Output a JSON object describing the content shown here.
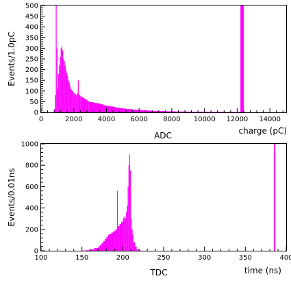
{
  "chart_data": [
    {
      "type": "bar",
      "title": "ADC",
      "xlabel": "charge (pC)",
      "ylabel": "Events/1.0pC",
      "xlim": [
        0,
        15000
      ],
      "ylim": [
        0,
        500
      ],
      "xticks": [
        0,
        2000,
        4000,
        6000,
        8000,
        10000,
        12000,
        14000
      ],
      "yticks": [
        0,
        50,
        100,
        150,
        200,
        250,
        300,
        350,
        400,
        450,
        500
      ],
      "color": "#ff00ff",
      "series": [
        {
          "x": [
            800,
            850,
            900,
            950,
            1000,
            1050,
            1100,
            1150,
            1200,
            1250,
            1300,
            1350,
            1400,
            1450,
            1500,
            1550,
            1600,
            1650,
            1700,
            1750,
            1800,
            1850,
            1900,
            1950,
            2000,
            2050,
            2100,
            2150,
            2200,
            2250,
            2300,
            2400,
            2500,
            2600,
            2700,
            2800,
            2900,
            3000,
            3200,
            3400,
            3600,
            3800,
            4000,
            4200,
            4400,
            4600,
            4800,
            5000,
            5200,
            5400,
            5600,
            5800,
            6000,
            6200,
            6400,
            6600,
            6800,
            7000,
            7200,
            7400,
            7600,
            7800,
            8000,
            8200,
            8400,
            8600,
            8800,
            9000,
            9200,
            9400,
            9600,
            9800,
            10000,
            10200,
            10400,
            10600,
            10800,
            11000,
            11200,
            11400,
            11600,
            11800,
            12000,
            12200,
            12400
          ],
          "values": [
            15,
            80,
            500,
            300,
            110,
            180,
            220,
            260,
            300,
            310,
            290,
            250,
            240,
            220,
            200,
            185,
            170,
            150,
            140,
            125,
            110,
            105,
            100,
            95,
            90,
            85,
            85,
            80,
            90,
            150,
            80,
            75,
            70,
            65,
            60,
            55,
            50,
            48,
            45,
            42,
            38,
            33,
            30,
            28,
            25,
            22,
            20,
            18,
            16,
            15,
            13,
            12,
            11,
            10,
            9,
            8,
            7,
            7,
            6,
            6,
            5,
            5,
            5,
            4,
            4,
            4,
            4,
            3,
            3,
            3,
            3,
            3,
            3,
            2,
            2,
            2,
            2,
            2,
            2,
            2,
            2,
            2,
            2,
            500,
            2
          ]
        }
      ]
    },
    {
      "type": "bar",
      "title": "TDC",
      "xlabel": "time (ns)",
      "ylabel": "Events/0.01ns",
      "xlim": [
        100,
        400
      ],
      "ylim": [
        0,
        1000
      ],
      "xticks": [
        100,
        150,
        200,
        250,
        300,
        350,
        400
      ],
      "yticks": [
        0,
        200,
        400,
        600,
        800,
        1000
      ],
      "color": "#ff00ff",
      "series": [
        {
          "x": [
            150,
            155,
            160,
            165,
            170,
            172,
            174,
            176,
            178,
            180,
            182,
            184,
            186,
            188,
            190,
            192,
            193,
            194,
            196,
            198,
            200,
            201,
            202,
            203,
            204,
            205,
            206,
            207,
            208,
            209,
            210,
            211,
            212,
            213,
            215,
            217,
            220,
            385
          ],
          "values": [
            2,
            5,
            12,
            25,
            40,
            55,
            70,
            90,
            110,
            130,
            150,
            160,
            170,
            180,
            190,
            205,
            560,
            230,
            250,
            270,
            300,
            320,
            300,
            310,
            360,
            420,
            600,
            800,
            900,
            750,
            300,
            200,
            150,
            80,
            40,
            10,
            5,
            1000
          ]
        }
      ]
    }
  ]
}
